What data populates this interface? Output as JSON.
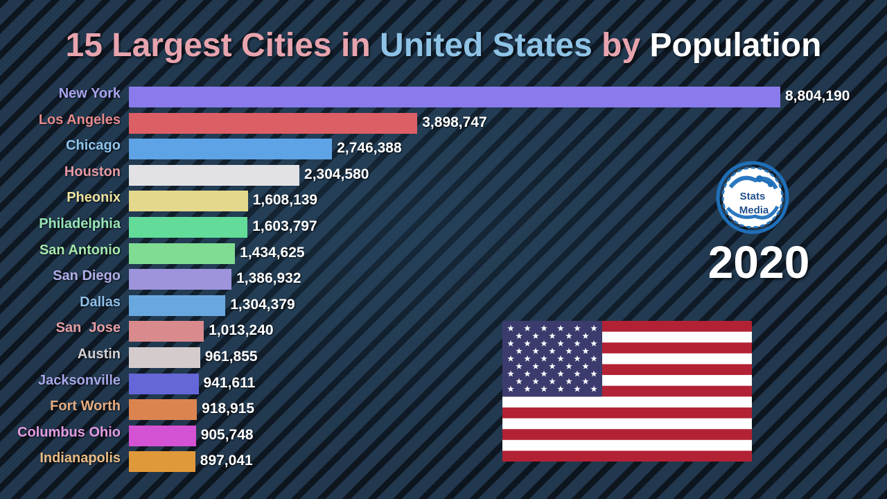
{
  "title": {
    "part1": "15 Largest Cities in ",
    "part2": "United States",
    "part3": " by ",
    "part4": "Population"
  },
  "year": "2020",
  "logo": {
    "line1": "Stats",
    "line2": "Media"
  },
  "colors": {
    "title_pink": "#e8a4ae",
    "title_blue": "#8ec3e6",
    "background": "#1c2d3f",
    "flag_red": "#b22234",
    "flag_blue": "#3c3b6e"
  },
  "icons": {
    "flag": "us-flag-icon",
    "logo": "stats-media-logo"
  },
  "chart_data": {
    "type": "bar",
    "orientation": "horizontal",
    "categories": [
      "New York",
      "Los Angeles",
      "Chicago",
      "Houston",
      "Pheonix",
      "Philadelphia",
      "San Antonio",
      "San Diego",
      "Dallas",
      "San  Jose",
      "Austin",
      "Jacksonville",
      "Fort Worth",
      "Columbus Ohio",
      "Indianapolis"
    ],
    "values": [
      8804190,
      3898747,
      2746388,
      2304580,
      1608139,
      1603797,
      1434625,
      1386932,
      1304379,
      1013240,
      961855,
      941611,
      918915,
      905748,
      897041
    ],
    "value_labels": [
      "8,804,190",
      "3,898,747",
      "2,746,388",
      "2,304,580",
      "1,608,139",
      "1,603,797",
      "1,434,625",
      "1,386,932",
      "1,304,379",
      "1,013,240",
      "961,855",
      "941,611",
      "918,915",
      "905,748",
      "897,041"
    ],
    "bar_colors": [
      "#8a7bec",
      "#dc5f65",
      "#5ea3e6",
      "#e2e2e6",
      "#e3d88c",
      "#62dc98",
      "#80dc92",
      "#9d94dc",
      "#68a8de",
      "#d88a8c",
      "#d4cccc",
      "#6566d8",
      "#dc8450",
      "#d452d4",
      "#e0993a"
    ],
    "label_colors": [
      "#a9a4ee",
      "#e58a8c",
      "#8fc5ec",
      "#e69aa4",
      "#eee3a0",
      "#98e6b6",
      "#a6e8ac",
      "#b3aee8",
      "#8ec0e8",
      "#e89ea4",
      "#d4d0d4",
      "#a6a8e8",
      "#e6ac80",
      "#e39ce4",
      "#ebbc84"
    ],
    "grid": false,
    "legend": "none",
    "title": "15 Largest Cities in  United States by Population"
  }
}
